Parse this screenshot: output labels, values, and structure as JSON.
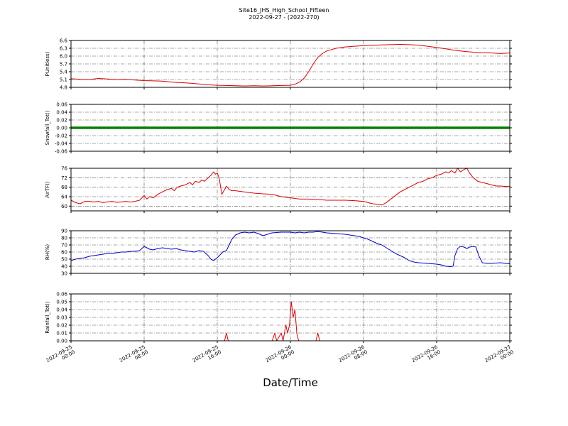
{
  "title": {
    "line1": "Site16_JHS_High_School_Fifteen",
    "line2": "2022-09-27 - (2022-270)"
  },
  "xlabel": "Date/Time",
  "x_ticks": [
    {
      "date": "2022-09-25",
      "time": "00:00",
      "hour": 0
    },
    {
      "date": "2022-09-25",
      "time": "08:00",
      "hour": 8
    },
    {
      "date": "2022-09-25",
      "time": "16:00",
      "hour": 16
    },
    {
      "date": "2022-09-26",
      "time": "00:00",
      "hour": 24
    },
    {
      "date": "2022-09-26",
      "time": "08:00",
      "hour": 32
    },
    {
      "date": "2022-09-26",
      "time": "16:00",
      "hour": 40
    },
    {
      "date": "2022-09-27",
      "time": "00:00",
      "hour": 48
    }
  ],
  "chart_data": [
    {
      "type": "line",
      "ylabel": "PUnitless)",
      "color": "#dd0000",
      "line_width": 1,
      "ylim": [
        4.8,
        6.6
      ],
      "yticks": [
        4.8,
        5.1,
        5.4,
        5.7,
        6.0,
        6.3,
        6.6
      ],
      "ytick_decimals": 1,
      "x_range": [
        0,
        48
      ],
      "points": [
        [
          0,
          5.13
        ],
        [
          1,
          5.11
        ],
        [
          2,
          5.1
        ],
        [
          3,
          5.14
        ],
        [
          4,
          5.12
        ],
        [
          5,
          5.1
        ],
        [
          6,
          5.11
        ],
        [
          7,
          5.08
        ],
        [
          8,
          5.06
        ],
        [
          9,
          5.05
        ],
        [
          10,
          5.04
        ],
        [
          11,
          5.0
        ],
        [
          12,
          4.98
        ],
        [
          13,
          4.96
        ],
        [
          14,
          4.93
        ],
        [
          15,
          4.9
        ],
        [
          16,
          4.88
        ],
        [
          17,
          4.87
        ],
        [
          18,
          4.86
        ],
        [
          19,
          4.85
        ],
        [
          20,
          4.86
        ],
        [
          21,
          4.85
        ],
        [
          22,
          4.86
        ],
        [
          23,
          4.87
        ],
        [
          24,
          4.88
        ],
        [
          24.5,
          4.92
        ],
        [
          25,
          5.0
        ],
        [
          25.5,
          5.15
        ],
        [
          26,
          5.4
        ],
        [
          26.5,
          5.7
        ],
        [
          27,
          5.95
        ],
        [
          27.5,
          6.1
        ],
        [
          28,
          6.2
        ],
        [
          29,
          6.3
        ],
        [
          30,
          6.35
        ],
        [
          31,
          6.38
        ],
        [
          32,
          6.4
        ],
        [
          33,
          6.42
        ],
        [
          34,
          6.43
        ],
        [
          35,
          6.44
        ],
        [
          36,
          6.45
        ],
        [
          37,
          6.44
        ],
        [
          38,
          6.42
        ],
        [
          39,
          6.38
        ],
        [
          40,
          6.33
        ],
        [
          41,
          6.28
        ],
        [
          42,
          6.22
        ],
        [
          43,
          6.18
        ],
        [
          44,
          6.15
        ],
        [
          45,
          6.13
        ],
        [
          46,
          6.12
        ],
        [
          47,
          6.1
        ],
        [
          48,
          6.12
        ]
      ]
    },
    {
      "type": "line",
      "ylabel": "Snowfall_Tot()",
      "color": "#008000",
      "line_width": 3.5,
      "ylim": [
        -0.06,
        0.06
      ],
      "yticks": [
        -0.06,
        -0.04,
        -0.02,
        0.0,
        0.02,
        0.04,
        0.06
      ],
      "ytick_decimals": 2,
      "x_range": [
        0,
        48
      ],
      "points": [
        [
          0,
          0
        ],
        [
          48,
          0
        ]
      ]
    },
    {
      "type": "line",
      "ylabel": "AirTF()",
      "color": "#dd0000",
      "line_width": 1,
      "ylim": [
        58,
        76
      ],
      "yticks": [
        60,
        64,
        68,
        72,
        76
      ],
      "ytick_decimals": 0,
      "x_range": [
        0,
        48
      ],
      "points": [
        [
          0,
          62.5
        ],
        [
          0.5,
          61.5
        ],
        [
          1,
          61
        ],
        [
          1.5,
          62
        ],
        [
          2,
          62
        ],
        [
          2.5,
          61.8
        ],
        [
          3,
          62
        ],
        [
          3.5,
          61.5
        ],
        [
          4,
          61.8
        ],
        [
          4.5,
          62
        ],
        [
          5,
          61.6
        ],
        [
          5.5,
          61.8
        ],
        [
          6,
          62
        ],
        [
          6.5,
          61.7
        ],
        [
          7,
          62
        ],
        [
          7.5,
          62.5
        ],
        [
          8,
          64.5
        ],
        [
          8.3,
          63
        ],
        [
          8.6,
          64
        ],
        [
          9,
          63.5
        ],
        [
          9.5,
          65
        ],
        [
          10,
          66
        ],
        [
          10.5,
          67
        ],
        [
          11,
          67.5
        ],
        [
          11.3,
          66.5
        ],
        [
          11.6,
          68
        ],
        [
          12,
          68.5
        ],
        [
          12.5,
          69
        ],
        [
          13,
          70
        ],
        [
          13.3,
          69
        ],
        [
          13.6,
          70.5
        ],
        [
          14,
          70
        ],
        [
          14.3,
          71
        ],
        [
          14.6,
          70.5
        ],
        [
          15,
          72
        ],
        [
          15.3,
          73
        ],
        [
          15.6,
          74.5
        ],
        [
          15.8,
          73.5
        ],
        [
          16,
          74
        ],
        [
          16.2,
          72
        ],
        [
          16.5,
          65
        ],
        [
          16.8,
          67
        ],
        [
          17,
          68.5
        ],
        [
          17.3,
          67
        ],
        [
          17.6,
          66.5
        ],
        [
          18,
          66.5
        ],
        [
          19,
          66
        ],
        [
          20,
          65.5
        ],
        [
          21,
          65.2
        ],
        [
          22,
          65
        ],
        [
          23,
          64
        ],
        [
          24,
          63.5
        ],
        [
          25,
          63
        ],
        [
          26,
          63
        ],
        [
          27,
          62.8
        ],
        [
          28,
          62.5
        ],
        [
          29,
          62.5
        ],
        [
          30,
          62.5
        ],
        [
          31,
          62.3
        ],
        [
          32,
          62
        ],
        [
          32.5,
          61.5
        ],
        [
          33,
          61
        ],
        [
          33.5,
          60.8
        ],
        [
          34,
          60.5
        ],
        [
          34.5,
          61.5
        ],
        [
          35,
          63
        ],
        [
          35.5,
          64.5
        ],
        [
          36,
          66
        ],
        [
          36.5,
          67
        ],
        [
          37,
          68
        ],
        [
          37.5,
          69
        ],
        [
          38,
          70
        ],
        [
          38.5,
          70.5
        ],
        [
          39,
          71.5
        ],
        [
          39.5,
          72
        ],
        [
          40,
          73
        ],
        [
          40.5,
          73.5
        ],
        [
          41,
          74.5
        ],
        [
          41.3,
          74
        ],
        [
          41.6,
          75
        ],
        [
          42,
          74
        ],
        [
          42.3,
          76
        ],
        [
          42.6,
          74.5
        ],
        [
          43,
          75.5
        ],
        [
          43.3,
          76
        ],
        [
          43.6,
          74
        ],
        [
          44,
          72
        ],
        [
          44.5,
          70.5
        ],
        [
          45,
          70
        ],
        [
          45.5,
          69.5
        ],
        [
          46,
          69
        ],
        [
          46.5,
          68.5
        ],
        [
          47,
          68.5
        ],
        [
          47.5,
          68.3
        ],
        [
          48,
          68.3
        ]
      ]
    },
    {
      "type": "line",
      "ylabel": "RH(%)",
      "color": "#0000cc",
      "line_width": 1,
      "ylim": [
        30,
        90
      ],
      "yticks": [
        30,
        40,
        50,
        60,
        70,
        80,
        90
      ],
      "ytick_decimals": 0,
      "x_range": [
        0,
        48
      ],
      "points": [
        [
          0,
          48
        ],
        [
          0.5,
          50
        ],
        [
          1,
          51
        ],
        [
          1.5,
          52
        ],
        [
          2,
          54
        ],
        [
          2.5,
          55
        ],
        [
          3,
          56
        ],
        [
          3.5,
          57
        ],
        [
          4,
          58
        ],
        [
          4.5,
          58
        ],
        [
          5,
          59
        ],
        [
          5.5,
          60
        ],
        [
          6,
          60
        ],
        [
          6.5,
          61
        ],
        [
          7,
          61
        ],
        [
          7.5,
          62
        ],
        [
          8,
          68
        ],
        [
          8.3,
          66
        ],
        [
          8.6,
          64
        ],
        [
          9,
          63
        ],
        [
          9.5,
          65
        ],
        [
          10,
          66
        ],
        [
          10.5,
          65
        ],
        [
          11,
          64
        ],
        [
          11.5,
          65
        ],
        [
          12,
          63
        ],
        [
          12.5,
          62
        ],
        [
          13,
          61
        ],
        [
          13.5,
          60
        ],
        [
          14,
          62
        ],
        [
          14.5,
          61
        ],
        [
          15,
          55
        ],
        [
          15.3,
          50
        ],
        [
          15.6,
          48
        ],
        [
          16,
          52
        ],
        [
          16.3,
          56
        ],
        [
          16.6,
          60
        ],
        [
          17,
          62
        ],
        [
          17.3,
          70
        ],
        [
          17.6,
          78
        ],
        [
          18,
          84
        ],
        [
          18.5,
          87
        ],
        [
          19,
          88
        ],
        [
          19.5,
          87
        ],
        [
          20,
          88
        ],
        [
          20.5,
          86
        ],
        [
          21,
          83
        ],
        [
          21.5,
          85
        ],
        [
          22,
          87
        ],
        [
          23,
          88
        ],
        [
          24,
          88
        ],
        [
          24.5,
          87
        ],
        [
          25,
          88
        ],
        [
          25.5,
          87
        ],
        [
          26,
          88
        ],
        [
          26.5,
          88
        ],
        [
          27,
          89
        ],
        [
          27.5,
          88
        ],
        [
          28,
          87
        ],
        [
          29,
          86
        ],
        [
          30,
          85
        ],
        [
          30.5,
          84
        ],
        [
          31,
          83
        ],
        [
          31.5,
          82
        ],
        [
          32,
          80
        ],
        [
          32.5,
          78
        ],
        [
          33,
          75
        ],
        [
          33.5,
          72
        ],
        [
          34,
          70
        ],
        [
          34.5,
          66
        ],
        [
          35,
          62
        ],
        [
          35.5,
          58
        ],
        [
          36,
          55
        ],
        [
          36.5,
          52
        ],
        [
          37,
          48
        ],
        [
          37.5,
          46
        ],
        [
          38,
          45
        ],
        [
          38.5,
          44.5
        ],
        [
          39,
          44
        ],
        [
          39.5,
          43.5
        ],
        [
          40,
          43
        ],
        [
          40.5,
          42
        ],
        [
          41,
          40
        ],
        [
          41.5,
          39.5
        ],
        [
          41.8,
          40
        ],
        [
          42,
          55
        ],
        [
          42.3,
          65
        ],
        [
          42.6,
          68
        ],
        [
          43,
          67
        ],
        [
          43.3,
          65
        ],
        [
          43.6,
          67
        ],
        [
          44,
          68
        ],
        [
          44.3,
          67
        ],
        [
          44.6,
          55
        ],
        [
          45,
          45
        ],
        [
          45.5,
          44
        ],
        [
          46,
          44
        ],
        [
          46.5,
          44.5
        ],
        [
          47,
          45
        ],
        [
          47.5,
          44
        ],
        [
          48,
          43.5
        ]
      ]
    },
    {
      "type": "line",
      "ylabel": "Rainfall_Tot()",
      "color": "#dd0000",
      "line_width": 1,
      "ylim": [
        0,
        0.06
      ],
      "yticks": [
        0.0,
        0.01,
        0.02,
        0.03,
        0.04,
        0.05,
        0.06
      ],
      "ytick_decimals": 2,
      "x_range": [
        0,
        48
      ],
      "points": [
        [
          0,
          0
        ],
        [
          16.8,
          0
        ],
        [
          17,
          0.01
        ],
        [
          17.2,
          0
        ],
        [
          22,
          0
        ],
        [
          22.3,
          0.01
        ],
        [
          22.5,
          0
        ],
        [
          23,
          0.01
        ],
        [
          23.2,
          0
        ],
        [
          23.5,
          0.02
        ],
        [
          23.7,
          0.01
        ],
        [
          23.9,
          0.02
        ],
        [
          24.1,
          0.05
        ],
        [
          24.3,
          0.03
        ],
        [
          24.5,
          0.04
        ],
        [
          24.7,
          0.01
        ],
        [
          24.9,
          0
        ],
        [
          26.8,
          0
        ],
        [
          27,
          0.01
        ],
        [
          27.2,
          0
        ],
        [
          48,
          0
        ]
      ]
    }
  ]
}
